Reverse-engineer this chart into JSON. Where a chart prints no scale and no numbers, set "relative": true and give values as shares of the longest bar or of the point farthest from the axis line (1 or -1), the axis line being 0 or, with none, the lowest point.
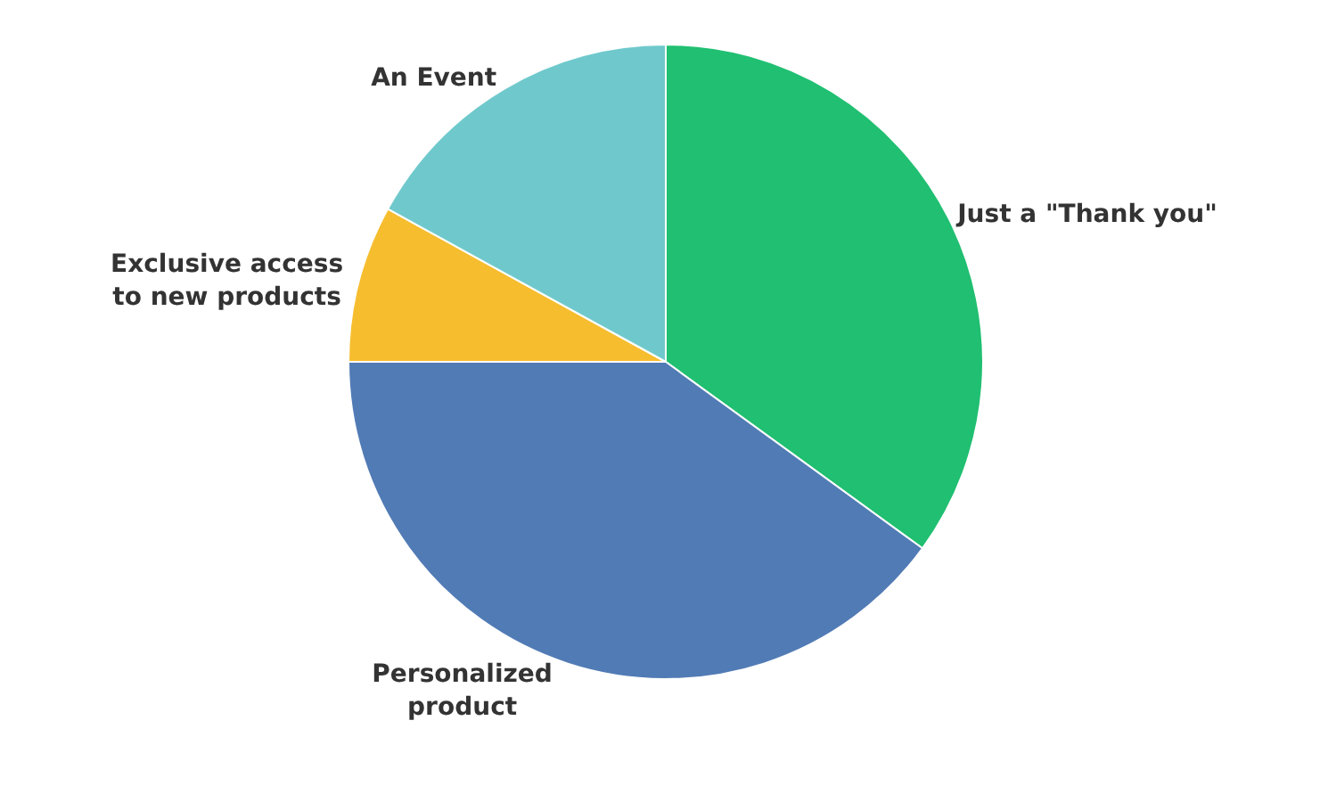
{
  "chart_data": {
    "type": "pie",
    "relative": true,
    "categories": [
      "Just a \"Thank you\"",
      "Personalized product",
      "Exclusive access to new products",
      "An Event"
    ],
    "values": [
      35,
      40,
      8,
      17
    ],
    "colors": [
      "#20bf71",
      "#517bb5",
      "#f6bd2f",
      "#6fc9cc"
    ],
    "legend": false
  }
}
